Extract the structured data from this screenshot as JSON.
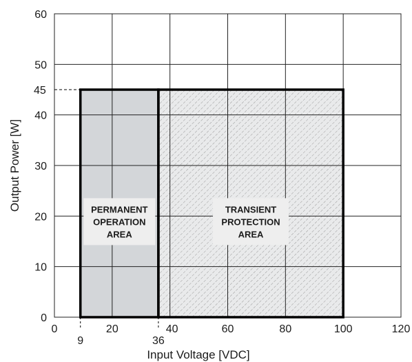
{
  "chart_data": {
    "type": "area",
    "xlabel": "Input Voltage [VDC]",
    "ylabel": "Output Power [W]",
    "xlim": [
      0,
      120
    ],
    "ylim": [
      0,
      60
    ],
    "x_ticks": [
      "0",
      "20",
      "40",
      "60",
      "80",
      "100",
      "120"
    ],
    "y_ticks": [
      "0",
      "10",
      "20",
      "30",
      "40",
      "50",
      "60"
    ],
    "grid": true,
    "reference_lines": [
      {
        "axis": "y",
        "value": 45,
        "label": "45"
      },
      {
        "axis": "x",
        "value": 9,
        "label": "9"
      },
      {
        "axis": "x",
        "value": 36,
        "label": "36"
      }
    ],
    "regions": [
      {
        "x_range": [
          9,
          36
        ],
        "y_range": [
          0,
          45
        ],
        "label_lines": [
          "PERMANENT",
          "OPERATION",
          "AREA"
        ],
        "fill": "#d3d6d9",
        "pattern": "solid"
      },
      {
        "x_range": [
          36,
          100
        ],
        "y_range": [
          0,
          45
        ],
        "label_lines": [
          "TRANSIENT",
          "PROTECTION",
          "AREA"
        ],
        "fill": "#e9eaeb",
        "pattern": "hatched"
      }
    ]
  },
  "colors": {
    "grid": "#222222",
    "frame": "#000000",
    "label_box": "#eeeeee",
    "text": "#1a1a1a"
  }
}
